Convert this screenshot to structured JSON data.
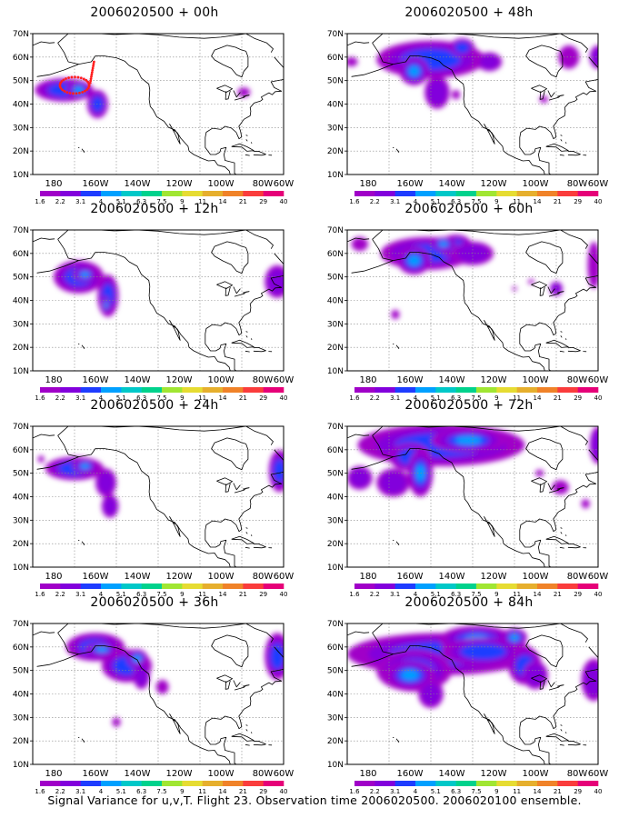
{
  "palette": [
    "#a000c8",
    "#8200dc",
    "#1e3cff",
    "#00a0ff",
    "#00c8c8",
    "#00d28c",
    "#a0e632",
    "#e6dc32",
    "#e6af2d",
    "#f08228",
    "#fa3c3c",
    "#e60078"
  ],
  "colorbar_labels": [
    "1.6",
    "2.2",
    "3.1",
    "4",
    "5.1",
    "6.3",
    "7.5",
    "9",
    "11",
    "14",
    "21",
    "29",
    "40"
  ],
  "lat_labels": [
    "70N",
    "60N",
    "50N",
    "40N",
    "30N",
    "20N",
    "10N"
  ],
  "lon_labels": [
    "180",
    "160W",
    "140W",
    "120W",
    "100W",
    "80W",
    "60W"
  ],
  "panels": [
    {
      "title": "2006020500  + 00h"
    },
    {
      "title": "2006020500  + 48h"
    },
    {
      "title": "2006020500  + 12h"
    },
    {
      "title": "2006020500  + 60h"
    },
    {
      "title": "2006020500  + 24h"
    },
    {
      "title": "2006020500  + 72h"
    },
    {
      "title": "2006020500  + 36h"
    },
    {
      "title": "2006020500  + 84h"
    }
  ],
  "footer": "Signal Variance for u,v,T. Flight 23. Observation time 2006020500. 2006020100 ensemble."
}
